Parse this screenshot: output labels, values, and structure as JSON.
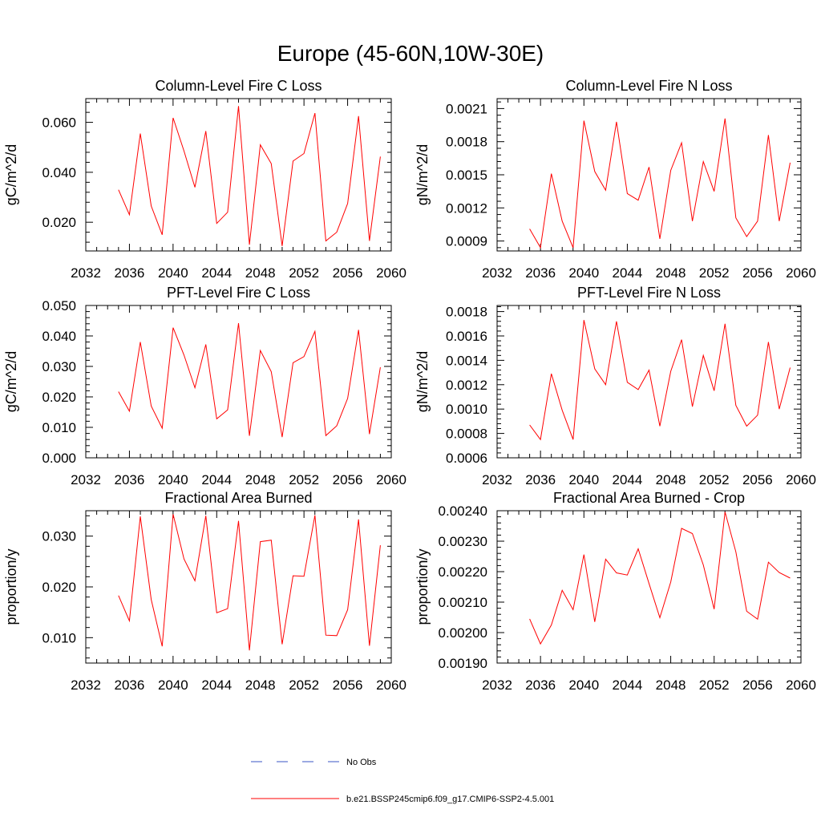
{
  "figure": {
    "title": "Europe (45-60N,10W-30E)",
    "line_color": "#ff0000",
    "obs_color": "#3a56c5"
  },
  "legend": {
    "items": [
      {
        "label": "No Obs",
        "style": "dashed",
        "color": "#3a56c5"
      },
      {
        "label": "b.e21.BSSP245cmip6.f09_g17.CMIP6-SSP2-4.5.001",
        "style": "solid",
        "color": "#ff0000"
      }
    ]
  },
  "chart_data": [
    {
      "type": "line",
      "title": "Column-Level Fire C Loss",
      "xlabel": "",
      "ylabel": "gC/m^2/d",
      "xlim": [
        2032,
        2060
      ],
      "ylim": [
        0.0085,
        0.0695
      ],
      "xticks": [
        "2032",
        "2036",
        "2040",
        "2044",
        "2048",
        "2052",
        "2056",
        "2060"
      ],
      "yticks": [
        "0.020",
        "0.040",
        "0.060"
      ],
      "x": [
        2035,
        2036,
        2037,
        2038,
        2039,
        2040,
        2041,
        2042,
        2043,
        2044,
        2045,
        2046,
        2047,
        2048,
        2049,
        2050,
        2051,
        2052,
        2053,
        2054,
        2055,
        2056,
        2057,
        2058,
        2059
      ],
      "series": [
        {
          "values": [
            0.033,
            0.023,
            0.0555,
            0.0265,
            0.015,
            0.0618,
            0.0485,
            0.034,
            0.0565,
            0.0195,
            0.024,
            0.0665,
            0.011,
            0.051,
            0.0435,
            0.0105,
            0.0445,
            0.0475,
            0.0637,
            0.0125,
            0.016,
            0.0275,
            0.0625,
            0.0125,
            0.0463
          ]
        }
      ]
    },
    {
      "type": "line",
      "title": "Column-Level Fire N Loss",
      "xlabel": "",
      "ylabel": "gN/m^2/d",
      "xlim": [
        2032,
        2060
      ],
      "ylim": [
        0.00081,
        0.00219
      ],
      "xticks": [
        "2032",
        "2036",
        "2040",
        "2044",
        "2048",
        "2052",
        "2056",
        "2060"
      ],
      "yticks": [
        "0.0009",
        "0.0012",
        "0.0015",
        "0.0018",
        "0.0021"
      ],
      "x": [
        2035,
        2036,
        2037,
        2038,
        2039,
        2040,
        2041,
        2042,
        2043,
        2044,
        2045,
        2046,
        2047,
        2048,
        2049,
        2050,
        2051,
        2052,
        2053,
        2054,
        2055,
        2056,
        2057,
        2058,
        2059
      ],
      "series": [
        {
          "values": [
            0.00101,
            0.00084,
            0.00151,
            0.00108,
            0.00084,
            0.00199,
            0.00153,
            0.00136,
            0.00198,
            0.00133,
            0.00127,
            0.00157,
            0.00092,
            0.00154,
            0.00179,
            0.00108,
            0.00162,
            0.00135,
            0.00201,
            0.00111,
            0.00094,
            0.00108,
            0.00186,
            0.00108,
            0.00161
          ]
        }
      ]
    },
    {
      "type": "line",
      "title": "PFT-Level Fire C Loss",
      "xlabel": "",
      "ylabel": "gC/m^2/d",
      "xlim": [
        2032,
        2060
      ],
      "ylim": [
        0.0,
        0.05
      ],
      "xticks": [
        "2032",
        "2036",
        "2040",
        "2044",
        "2048",
        "2052",
        "2056",
        "2060"
      ],
      "yticks": [
        "0.000",
        "0.010",
        "0.020",
        "0.030",
        "0.040",
        "0.050"
      ],
      "x": [
        2035,
        2036,
        2037,
        2038,
        2039,
        2040,
        2041,
        2042,
        2043,
        2044,
        2045,
        2046,
        2047,
        2048,
        2049,
        2050,
        2051,
        2052,
        2053,
        2054,
        2055,
        2056,
        2057,
        2058,
        2059
      ],
      "series": [
        {
          "values": [
            0.0217,
            0.0153,
            0.038,
            0.017,
            0.0097,
            0.0427,
            0.0337,
            0.023,
            0.0372,
            0.0128,
            0.0157,
            0.0442,
            0.0072,
            0.0352,
            0.0283,
            0.0068,
            0.0312,
            0.0332,
            0.0415,
            0.0073,
            0.0105,
            0.0195,
            0.042,
            0.0078,
            0.0297
          ]
        }
      ]
    },
    {
      "type": "line",
      "title": "PFT-Level Fire N Loss",
      "xlabel": "",
      "ylabel": "gN/m^2/d",
      "xlim": [
        2032,
        2060
      ],
      "ylim": [
        0.0006,
        0.00185
      ],
      "xticks": [
        "2032",
        "2036",
        "2040",
        "2044",
        "2048",
        "2052",
        "2056",
        "2060"
      ],
      "yticks": [
        "0.0006",
        "0.0008",
        "0.0010",
        "0.0012",
        "0.0014",
        "0.0016",
        "0.0018"
      ],
      "x": [
        2035,
        2036,
        2037,
        2038,
        2039,
        2040,
        2041,
        2042,
        2043,
        2044,
        2045,
        2046,
        2047,
        2048,
        2049,
        2050,
        2051,
        2052,
        2053,
        2054,
        2055,
        2056,
        2057,
        2058,
        2059
      ],
      "series": [
        {
          "values": [
            0.00087,
            0.00075,
            0.00129,
            0.00099,
            0.00075,
            0.00173,
            0.00133,
            0.0012,
            0.00172,
            0.00122,
            0.00116,
            0.00132,
            0.00086,
            0.00131,
            0.00157,
            0.00102,
            0.00144,
            0.00115,
            0.0017,
            0.00103,
            0.00086,
            0.00095,
            0.00155,
            0.001,
            0.00134
          ]
        }
      ]
    },
    {
      "type": "line",
      "title": "Fractional Area Burned",
      "xlabel": "",
      "ylabel": "proportion/y",
      "xlim": [
        2032,
        2060
      ],
      "ylim": [
        0.005,
        0.035
      ],
      "xticks": [
        "2032",
        "2036",
        "2040",
        "2044",
        "2048",
        "2052",
        "2056",
        "2060"
      ],
      "yticks": [
        "0.010",
        "0.020",
        "0.030"
      ],
      "x": [
        2035,
        2036,
        2037,
        2038,
        2039,
        2040,
        2041,
        2042,
        2043,
        2044,
        2045,
        2046,
        2047,
        2048,
        2049,
        2050,
        2051,
        2052,
        2053,
        2054,
        2055,
        2056,
        2057,
        2058,
        2059
      ],
      "series": [
        {
          "values": [
            0.0183,
            0.0133,
            0.0339,
            0.0175,
            0.0083,
            0.0343,
            0.0255,
            0.0212,
            0.034,
            0.0149,
            0.0157,
            0.033,
            0.0075,
            0.0289,
            0.0292,
            0.0087,
            0.0222,
            0.0221,
            0.0341,
            0.0105,
            0.0104,
            0.0155,
            0.0333,
            0.0084,
            0.0282
          ]
        }
      ]
    },
    {
      "type": "line",
      "title": "Fractional Area Burned - Crop",
      "xlabel": "",
      "ylabel": "proportion/y",
      "xlim": [
        2032,
        2060
      ],
      "ylim": [
        0.0019,
        0.0024
      ],
      "xticks": [
        "2032",
        "2036",
        "2040",
        "2044",
        "2048",
        "2052",
        "2056",
        "2060"
      ],
      "yticks": [
        "0.00190",
        "0.00200",
        "0.00210",
        "0.00220",
        "0.00230",
        "0.00240"
      ],
      "x": [
        2035,
        2036,
        2037,
        2038,
        2039,
        2040,
        2041,
        2042,
        2043,
        2044,
        2045,
        2046,
        2047,
        2048,
        2049,
        2050,
        2051,
        2052,
        2053,
        2054,
        2055,
        2056,
        2057,
        2058,
        2059
      ],
      "series": [
        {
          "values": [
            0.002045,
            0.001963,
            0.002025,
            0.002139,
            0.002075,
            0.002256,
            0.002035,
            0.002241,
            0.002196,
            0.002189,
            0.002275,
            0.002161,
            0.002049,
            0.002166,
            0.002342,
            0.002325,
            0.002222,
            0.002077,
            0.002396,
            0.002265,
            0.00207,
            0.002044,
            0.002231,
            0.002197,
            0.002179
          ]
        }
      ]
    }
  ]
}
